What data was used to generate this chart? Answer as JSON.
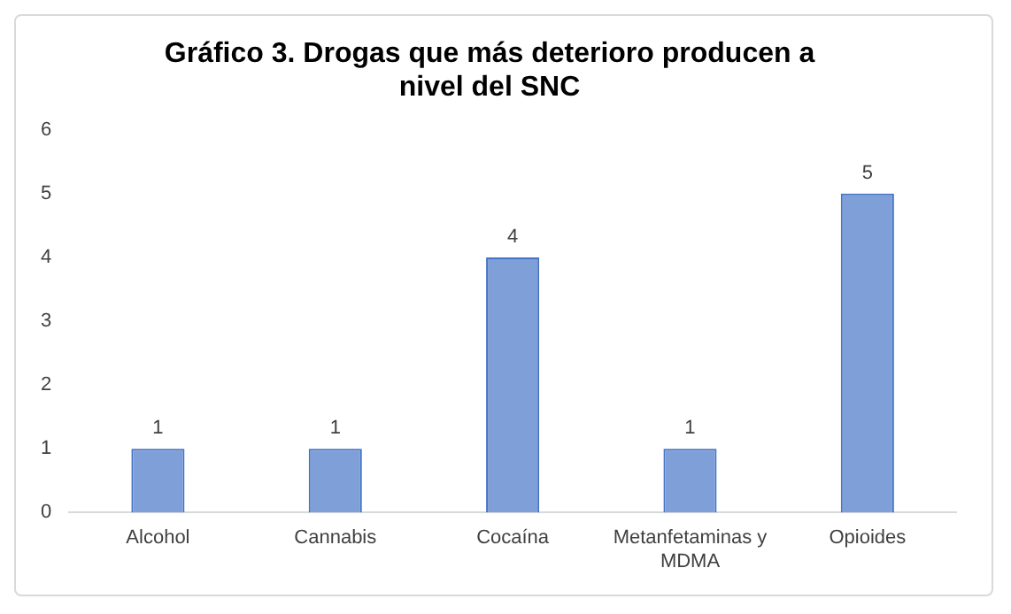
{
  "chart_data": {
    "type": "bar",
    "title": "Gráfico 3. Drogas que más deterioro producen a nivel del SNC",
    "categories": [
      "Alcohol",
      "Cannabis",
      "Cocaína",
      "Metanfetaminas y MDMA",
      "Opioides"
    ],
    "values": [
      1,
      1,
      4,
      1,
      5
    ],
    "color": "#7f9fd8",
    "ylim": [
      0,
      6
    ],
    "yticks": [
      0,
      1,
      2,
      3,
      4,
      5,
      6
    ],
    "grid": false,
    "data_labels": true,
    "legend": false
  }
}
